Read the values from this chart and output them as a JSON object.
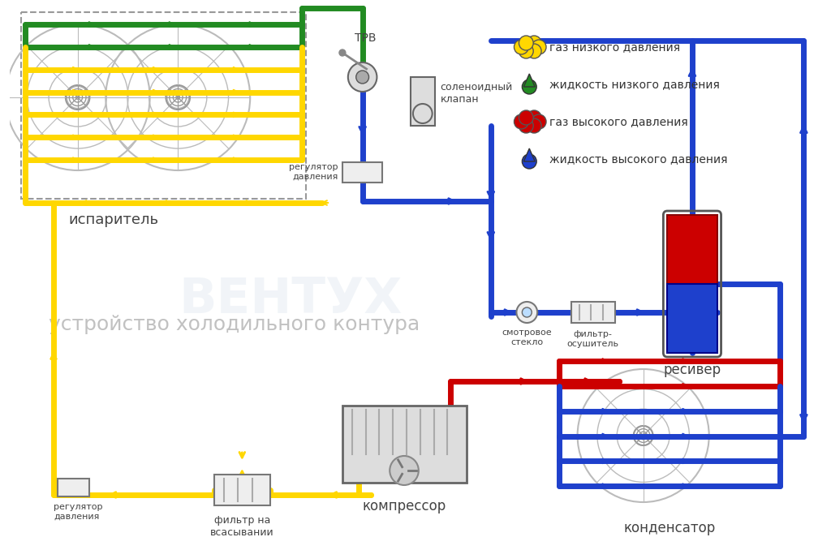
{
  "title": "устройство холодильного контура",
  "title_fontsize": 18,
  "title_color": "#bbbbbb",
  "bg_color": "#ffffff",
  "legend_items": [
    {
      "label": "газ низкого давления",
      "color": "#FFD700",
      "type": "blob"
    },
    {
      "label": "жидкость низкого давления",
      "color": "#228B22",
      "type": "drop"
    },
    {
      "label": "газ высокого давления",
      "color": "#CC0000",
      "type": "blob"
    },
    {
      "label": "жидкость высокого давления",
      "color": "#1E40CC",
      "type": "drop"
    }
  ],
  "colors": {
    "yellow": "#FFD700",
    "green": "#228B22",
    "red": "#CC0000",
    "blue": "#1E40CC",
    "gray": "#888888",
    "light_gray": "#cccccc",
    "dark_gray": "#444444",
    "white": "#ffffff"
  },
  "labels": {
    "evaporator": "испаритель",
    "condenser": "конденсатор",
    "compressor": "компрессор",
    "receiver": "ресивер",
    "trv": "ТРВ",
    "solenoid": "соленоидный\nклапан",
    "regulator1": "регулятор\nдавления",
    "regulator2": "регулятор\nдавления",
    "filter_suction": "фильтр на\nвсасывании",
    "sight_glass": "смотровое\nстекло",
    "filter_dryer": "фильтр-\nосушитель"
  }
}
